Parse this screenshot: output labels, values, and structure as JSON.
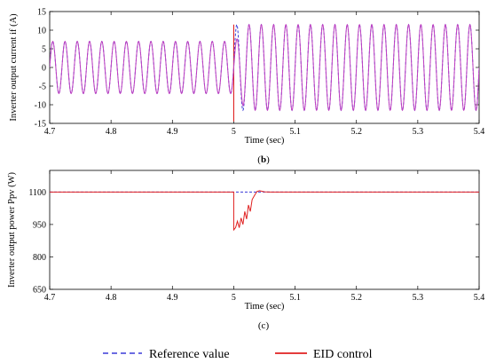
{
  "chart_data": [
    {
      "type": "line",
      "caption_paren_open": "(",
      "caption_letter": "b",
      "caption_paren_close": ")",
      "xlabel": "Time (sec)",
      "ylabel": "Inverter output current  if (A)",
      "xlim": [
        4.7,
        5.4
      ],
      "ylim": [
        -15,
        15
      ],
      "x_ticks": [
        "4.7",
        "4.8",
        "4.9",
        "5",
        "5.1",
        "5.2",
        "5.3",
        "5.4"
      ],
      "y_ticks": [
        "-15",
        "-10",
        "-5",
        "0",
        "5",
        "10",
        "15"
      ],
      "grid": false,
      "waveform": {
        "frequency_hz": 50,
        "amplitude_before": 7,
        "amplitude_after": 11.5,
        "step_time": 5.0,
        "transient_peak": -14.5
      },
      "series": [
        {
          "name": "Reference value",
          "style": "dashed",
          "color": "#3a3ad8"
        },
        {
          "name": "EID control",
          "style": "solid",
          "color": "#e02020"
        }
      ]
    },
    {
      "type": "line",
      "caption_paren_open": "(",
      "caption_letter": "c",
      "caption_paren_close": ")",
      "xlabel": "Time (sec)",
      "ylabel": "Inverter output power  Ppv (W)",
      "xlim": [
        4.7,
        5.4
      ],
      "ylim": [
        650,
        1200
      ],
      "x_ticks": [
        "4.7",
        "4.8",
        "4.9",
        "5",
        "5.1",
        "5.2",
        "5.3",
        "5.4"
      ],
      "y_ticks": [
        "650",
        "800",
        "950",
        "1100"
      ],
      "grid": false,
      "reference": {
        "value": 1100,
        "dip_start": 5.0,
        "dip_end": 5.04
      },
      "eid_points": [
        [
          4.7,
          1100
        ],
        [
          5.0,
          1100
        ],
        [
          5.0,
          925
        ],
        [
          5.003,
          935
        ],
        [
          5.006,
          965
        ],
        [
          5.009,
          935
        ],
        [
          5.012,
          980
        ],
        [
          5.015,
          950
        ],
        [
          5.018,
          1010
        ],
        [
          5.021,
          975
        ],
        [
          5.024,
          1040
        ],
        [
          5.027,
          1010
        ],
        [
          5.03,
          1065
        ],
        [
          5.034,
          1085
        ],
        [
          5.038,
          1103
        ],
        [
          5.042,
          1106
        ],
        [
          5.05,
          1101
        ],
        [
          5.06,
          1100
        ],
        [
          5.4,
          1100
        ]
      ],
      "series": [
        {
          "name": "Reference value",
          "style": "dashed",
          "color": "#3a3ad8"
        },
        {
          "name": "EID control",
          "style": "solid",
          "color": "#e02020"
        }
      ]
    }
  ],
  "legend": {
    "placement": "bottom-center",
    "items": [
      {
        "label": "Reference value",
        "style": "dashed",
        "color": "#3a3ad8"
      },
      {
        "label": "EID control",
        "style": "solid",
        "color": "#e02020"
      }
    ]
  }
}
